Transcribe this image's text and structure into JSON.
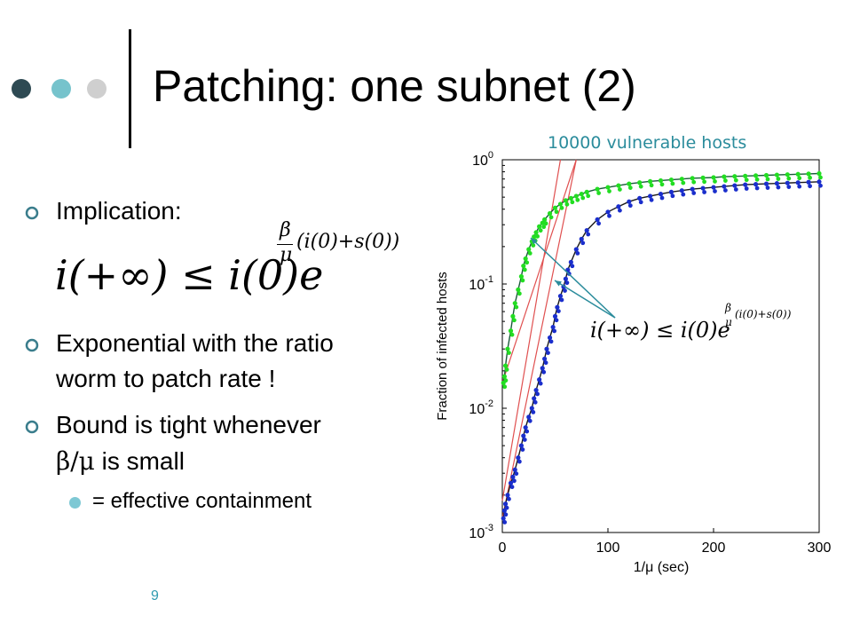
{
  "slide": {
    "title": "Patching: one subnet (2)",
    "page_number": "9",
    "dots": [
      {
        "name": "dot-dark",
        "color": "#2e4a53"
      },
      {
        "name": "dot-teal",
        "color": "#76c3cc"
      },
      {
        "name": "dot-gray",
        "color": "#cfcfcf"
      }
    ],
    "bullets": [
      {
        "text": "Implication:"
      },
      {
        "line1": "Exponential  with the ratio",
        "line2": "worm to patch rate !"
      },
      {
        "line1": "Bound is tight whenever",
        "line2_symbol": "β/μ",
        "line2_rest": " is small"
      }
    ],
    "sub_bullet": "= effective containment",
    "formula": {
      "lhs": "i(+∞) ≤ i(0)e",
      "exponent_fraction_num": "β",
      "exponent_fraction_den": "μ",
      "exponent_rest": "(i(0)+s(0))"
    },
    "colors": {
      "accent_teal": "#2b8c9c",
      "bullet_teal": "#3a7d8c",
      "sub_bullet": "#7ec8d4"
    }
  },
  "chart_data": {
    "type": "scatter",
    "title": "10000 vulnerable hosts",
    "xlabel": "1/μ (sec)",
    "ylabel": "Fraction of infected hosts",
    "xlim": [
      0,
      300
    ],
    "ylim": [
      0.001,
      1
    ],
    "yscale": "log",
    "xticks": [
      "0",
      "100",
      "200",
      "300"
    ],
    "yticks": [
      {
        "base": "10",
        "exp": "-3",
        "value": 0.001
      },
      {
        "base": "10",
        "exp": "-2",
        "value": 0.01
      },
      {
        "base": "10",
        "exp": "-1",
        "value": 0.1
      },
      {
        "base": "10",
        "exp": "0",
        "value": 1
      }
    ],
    "annotation": "i(+∞) ≤ i(0)e^{β/μ (i(0)+s(0))}",
    "series": [
      {
        "color": "#22dd22",
        "x": [
          1,
          2,
          3,
          5,
          8,
          10,
          12,
          15,
          18,
          20,
          22,
          25,
          28,
          30,
          32,
          35,
          38,
          40,
          45,
          50,
          55,
          60,
          65,
          70,
          75,
          80,
          90,
          100,
          110,
          120,
          130,
          140,
          150,
          160,
          170,
          180,
          190,
          200,
          210,
          220,
          230,
          240,
          250,
          260,
          270,
          280,
          290,
          300
        ],
        "y": [
          0.016,
          0.018,
          0.022,
          0.03,
          0.042,
          0.055,
          0.07,
          0.09,
          0.115,
          0.14,
          0.16,
          0.19,
          0.22,
          0.24,
          0.26,
          0.29,
          0.31,
          0.33,
          0.37,
          0.41,
          0.44,
          0.47,
          0.49,
          0.51,
          0.53,
          0.55,
          0.58,
          0.6,
          0.62,
          0.64,
          0.655,
          0.67,
          0.68,
          0.69,
          0.7,
          0.71,
          0.715,
          0.72,
          0.73,
          0.735,
          0.74,
          0.745,
          0.75,
          0.755,
          0.76,
          0.765,
          0.77,
          0.775
        ]
      },
      {
        "color": "#1a2ecc",
        "x": [
          1,
          2,
          3,
          5,
          8,
          10,
          12,
          15,
          18,
          20,
          22,
          25,
          28,
          30,
          32,
          35,
          38,
          40,
          42,
          45,
          48,
          50,
          52,
          55,
          58,
          60,
          62,
          65,
          70,
          75,
          80,
          90,
          100,
          110,
          120,
          130,
          140,
          150,
          160,
          170,
          180,
          190,
          200,
          210,
          220,
          230,
          240,
          250,
          260,
          270,
          280,
          290,
          300
        ],
        "y": [
          0.0013,
          0.0015,
          0.0017,
          0.002,
          0.0025,
          0.0028,
          0.0032,
          0.004,
          0.005,
          0.006,
          0.007,
          0.0085,
          0.01,
          0.012,
          0.014,
          0.017,
          0.021,
          0.025,
          0.03,
          0.037,
          0.045,
          0.055,
          0.065,
          0.08,
          0.095,
          0.11,
          0.13,
          0.15,
          0.19,
          0.23,
          0.27,
          0.33,
          0.38,
          0.42,
          0.46,
          0.49,
          0.51,
          0.53,
          0.55,
          0.565,
          0.58,
          0.59,
          0.6,
          0.61,
          0.62,
          0.63,
          0.635,
          0.64,
          0.645,
          0.65,
          0.655,
          0.66,
          0.665
        ]
      }
    ],
    "reference_lines": [
      {
        "color": "#e05050",
        "from": [
          0,
          0.016
        ],
        "to": [
          70,
          1
        ]
      },
      {
        "color": "#e05050",
        "from": [
          0,
          0.0013
        ],
        "to": [
          70,
          1
        ]
      },
      {
        "color": "#e05050",
        "from": [
          0,
          0.0018
        ],
        "to": [
          55,
          1
        ]
      }
    ],
    "fit_curves": [
      {
        "color": "#1a5a3a"
      },
      {
        "color": "#1a1a1a"
      }
    ]
  }
}
